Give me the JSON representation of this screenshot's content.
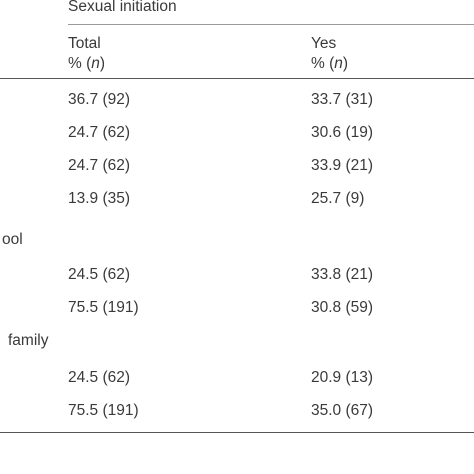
{
  "header": {
    "group_label": "Sexual initiation",
    "col_total_line1": "Total",
    "col_total_line2_prefix": "% (",
    "col_total_line2_italic": "n",
    "col_total_line2_suffix": ")",
    "col_yes_line1": "Yes",
    "col_yes_line2_prefix": "% (",
    "col_yes_line2_italic": "n",
    "col_yes_line2_suffix": ")"
  },
  "rows": [
    {
      "label": "",
      "total": "36.7 (92)",
      "yes": "33.7 (31)"
    },
    {
      "label": "",
      "total": "24.7 (62)",
      "yes": "30.6 (19)"
    },
    {
      "label": "",
      "total": "24.7 (62)",
      "yes": "33.9 (21)"
    },
    {
      "label": "",
      "total": "13.9 (35)",
      "yes": "25.7 (9)"
    },
    {
      "label": "ool",
      "total": "",
      "yes": ""
    },
    {
      "label": "",
      "total": "24.5 (62)",
      "yes": "33.8 (21)"
    },
    {
      "label": "",
      "total": "75.5 (191)",
      "yes": "30.8 (59)"
    },
    {
      "label": "family",
      "total": "",
      "yes": ""
    },
    {
      "label": "",
      "total": "24.5 (62)",
      "yes": "20.9 (13)"
    },
    {
      "label": "",
      "total": "75.5 (191)",
      "yes": "35.0 (67)"
    }
  ]
}
